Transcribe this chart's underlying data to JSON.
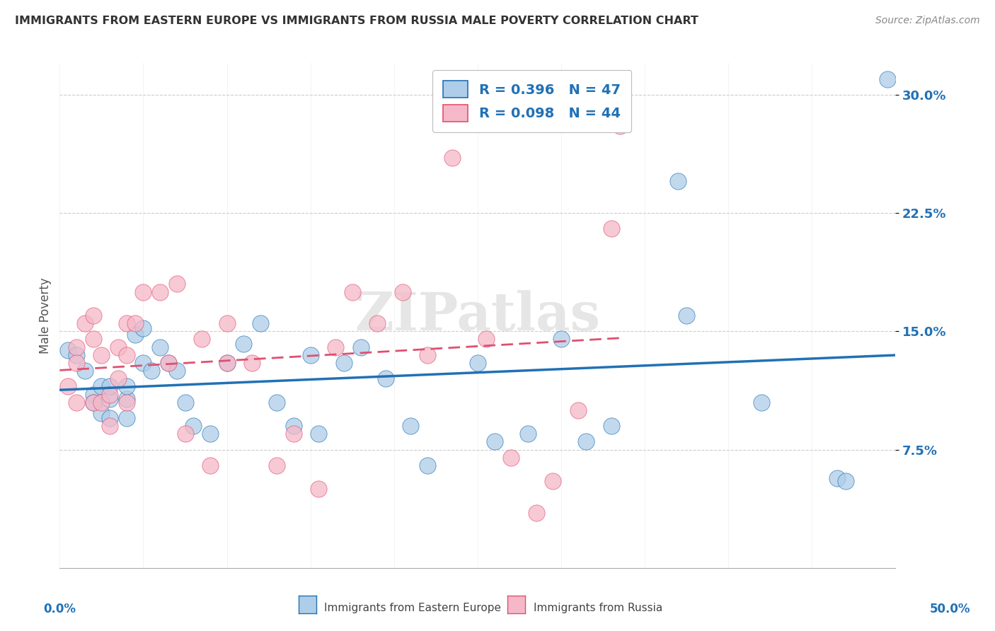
{
  "title": "IMMIGRANTS FROM EASTERN EUROPE VS IMMIGRANTS FROM RUSSIA MALE POVERTY CORRELATION CHART",
  "source": "Source: ZipAtlas.com",
  "ylabel": "Male Poverty",
  "yticks": [
    0.075,
    0.15,
    0.225,
    0.3
  ],
  "ytick_labels": [
    "7.5%",
    "15.0%",
    "22.5%",
    "30.0%"
  ],
  "xlim": [
    0.0,
    0.5
  ],
  "ylim": [
    0.0,
    0.32
  ],
  "legend_r1": "R = 0.396",
  "legend_n1": "N = 47",
  "legend_r2": "R = 0.098",
  "legend_n2": "N = 44",
  "blue_color": "#aecde8",
  "pink_color": "#f5b8c8",
  "blue_line_color": "#2171b5",
  "pink_line_color": "#e05070",
  "title_color": "#333333",
  "watermark": "ZIPatlas",
  "grid_color": "#cccccc",
  "blue_x": [
    0.005,
    0.01,
    0.015,
    0.02,
    0.02,
    0.025,
    0.025,
    0.03,
    0.03,
    0.03,
    0.04,
    0.04,
    0.04,
    0.045,
    0.05,
    0.05,
    0.055,
    0.06,
    0.065,
    0.07,
    0.075,
    0.08,
    0.09,
    0.1,
    0.11,
    0.12,
    0.13,
    0.14,
    0.15,
    0.155,
    0.17,
    0.18,
    0.195,
    0.21,
    0.22,
    0.25,
    0.26,
    0.28,
    0.3,
    0.315,
    0.33,
    0.37,
    0.375,
    0.42,
    0.465,
    0.47,
    0.495
  ],
  "blue_y": [
    0.138,
    0.135,
    0.125,
    0.11,
    0.105,
    0.098,
    0.115,
    0.095,
    0.107,
    0.115,
    0.095,
    0.107,
    0.115,
    0.148,
    0.152,
    0.13,
    0.125,
    0.14,
    0.13,
    0.125,
    0.105,
    0.09,
    0.085,
    0.13,
    0.142,
    0.155,
    0.105,
    0.09,
    0.135,
    0.085,
    0.13,
    0.14,
    0.12,
    0.09,
    0.065,
    0.13,
    0.08,
    0.085,
    0.145,
    0.08,
    0.09,
    0.245,
    0.16,
    0.105,
    0.057,
    0.055,
    0.31
  ],
  "pink_x": [
    0.005,
    0.01,
    0.01,
    0.01,
    0.015,
    0.02,
    0.02,
    0.02,
    0.025,
    0.025,
    0.03,
    0.03,
    0.035,
    0.035,
    0.04,
    0.04,
    0.04,
    0.045,
    0.05,
    0.06,
    0.065,
    0.07,
    0.075,
    0.085,
    0.09,
    0.1,
    0.1,
    0.115,
    0.13,
    0.14,
    0.155,
    0.165,
    0.175,
    0.19,
    0.205,
    0.22,
    0.235,
    0.255,
    0.27,
    0.285,
    0.295,
    0.31,
    0.33,
    0.335
  ],
  "pink_y": [
    0.115,
    0.14,
    0.13,
    0.105,
    0.155,
    0.16,
    0.145,
    0.105,
    0.135,
    0.105,
    0.11,
    0.09,
    0.14,
    0.12,
    0.155,
    0.135,
    0.105,
    0.155,
    0.175,
    0.175,
    0.13,
    0.18,
    0.085,
    0.145,
    0.065,
    0.155,
    0.13,
    0.13,
    0.065,
    0.085,
    0.05,
    0.14,
    0.175,
    0.155,
    0.175,
    0.135,
    0.26,
    0.145,
    0.07,
    0.035,
    0.055,
    0.1,
    0.215,
    0.28
  ]
}
